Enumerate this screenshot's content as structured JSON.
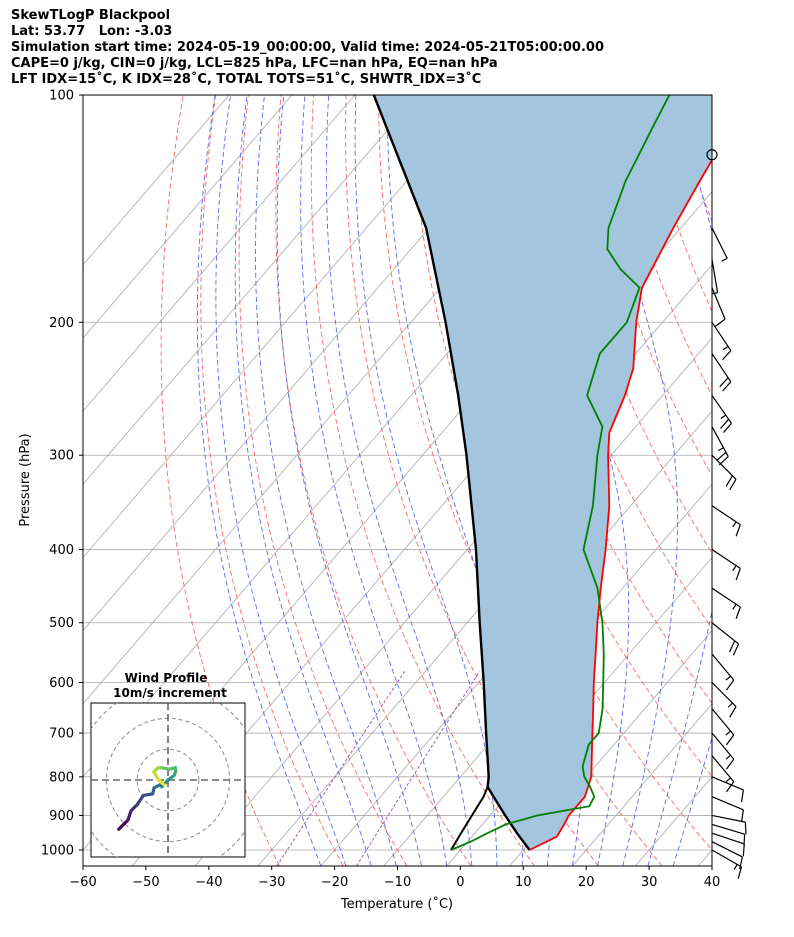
{
  "header": {
    "lines": [
      "SkewTLogP Blackpool",
      "Lat: 53.77   Lon: -3.03",
      "Simulation start time: 2024-05-19_00:00:00, Valid time: 2024-05-21T05:00:00.00",
      "CAPE=0 j/kg, CIN=0 j/kg, LCL=825 hPa, LFC=nan hPa, EQ=nan hPa",
      "LFT IDX=15˚C, K IDX=28˚C, TOTAL TOTS=51˚C, SHWTR_IDX=3˚C"
    ]
  },
  "chart_data": [
    {
      "type": "line",
      "subtype": "skew-t log-p",
      "xlabel": "Temperature (˚C)",
      "ylabel": "Pressure (hPa)",
      "xlim": [
        -60,
        40
      ],
      "ylim": [
        1050,
        100
      ],
      "y_scale": "log",
      "x_ticks": [
        -60,
        -50,
        -40,
        -30,
        -20,
        -10,
        0,
        10,
        20,
        30,
        40
      ],
      "y_ticks": [
        100,
        200,
        300,
        400,
        500,
        600,
        700,
        800,
        900,
        1000
      ],
      "x_tick_labels": [
        "−60",
        "−50",
        "−40",
        "−30",
        "−20",
        "−10",
        "0",
        "10",
        "20",
        "30",
        "40"
      ],
      "grid": true,
      "colors": {
        "temperature": "#ff0000",
        "dewpoint": "#008000",
        "parcel": "#000000",
        "fill": "#a3c6de",
        "dry_adiabats": "#ff6666",
        "moist_adiabats": "#5a6cf0",
        "mixing_ratio": "#9b59c6",
        "isotherms": "#aaaaaa"
      },
      "series": [
        {
          "key": "temperature",
          "p": [
            1000,
            960,
            925,
            900,
            850,
            800,
            750,
            700,
            650,
            600,
            550,
            500,
            450,
            400,
            350,
            300,
            280,
            250,
            230,
            200,
            180,
            150,
            130,
            110,
            100
          ],
          "t": [
            11,
            13.5,
            13,
            12.5,
            12.5,
            10.8,
            8,
            5,
            1.8,
            -1.7,
            -5.3,
            -9.3,
            -13.5,
            -18,
            -23.4,
            -30.5,
            -33.4,
            -36,
            -38.4,
            -44.2,
            -48,
            -51.2,
            -53.4,
            -55.8,
            -57
          ]
        },
        {
          "key": "dewpoint",
          "p": [
            1000,
            975,
            950,
            925,
            900,
            875,
            850,
            825,
            800,
            775,
            750,
            725,
            700,
            650,
            600,
            550,
            500,
            450,
            400,
            350,
            300,
            275,
            250,
            220,
            200,
            180,
            170,
            160,
            150,
            130,
            110,
            100
          ],
          "t": [
            -1.5,
            0.5,
            2,
            3.7,
            7.5,
            14.5,
            14,
            12,
            9.7,
            8,
            7,
            6,
            6,
            3.3,
            -0.2,
            -4,
            -8.5,
            -14,
            -21.5,
            -26,
            -32.2,
            -35.3,
            -42,
            -45.7,
            -45.7,
            -48.4,
            -54,
            -58.8,
            -61.5,
            -65.2,
            -68.3,
            -70
          ]
        },
        {
          "key": "parcel",
          "p": [
            1000,
            950,
            900,
            850,
            825,
            800,
            700,
            600,
            500,
            400,
            300,
            250,
            200,
            150,
            100
          ],
          "t": [
            11,
            6.7,
            2.4,
            -2,
            -4.3,
            -5.5,
            -11.9,
            -19.2,
            -28,
            -38.6,
            -53,
            -62.5,
            -74.5,
            -90.5,
            -117
          ]
        },
        {
          "key": "parcel-low",
          "p": [
            1000,
            950,
            900,
            850,
            825
          ],
          "t": [
            -1.5,
            -2.2,
            -2.9,
            -3.6,
            -4.3
          ]
        }
      ],
      "wind_barbs": {
        "p": [
          120,
          150,
          165,
          180,
          200,
          220,
          250,
          275,
          300,
          350,
          400,
          450,
          500,
          550,
          600,
          650,
          700,
          750,
          800,
          850,
          900,
          925,
          950,
          975,
          1000
        ],
        "u": [
          0,
          -2,
          -1,
          -5,
          -10,
          -12,
          -14,
          -12,
          -15,
          -15,
          -15,
          -15,
          -15,
          -10,
          -10,
          -10,
          -10,
          -10,
          -12,
          -12,
          -10,
          -10,
          -12,
          -12,
          -14
        ],
        "v": [
          0,
          4,
          6,
          12,
          15,
          18,
          20,
          22,
          15,
          10,
          10,
          10,
          12,
          12,
          10,
          12,
          12,
          12,
          5,
          5,
          2,
          3,
          4,
          6,
          8
        ]
      }
    },
    {
      "type": "line",
      "subtype": "hodograph",
      "title": "Wind Profile",
      "subtitle": "10m/s increment",
      "rings": [
        10,
        20,
        30
      ],
      "range": [
        -25,
        25
      ],
      "u": [
        -16,
        -13,
        -12,
        -10,
        -8,
        -5,
        -4.5,
        -2.5,
        -2,
        0,
        2,
        2.5,
        2.4,
        0.5,
        -2.2,
        -3.2,
        -4.6,
        -3.2,
        -1.2
      ],
      "v": [
        -16,
        -13,
        -10,
        -8,
        -5,
        -4.5,
        -2.5,
        -1.5,
        -2.2,
        0,
        1.5,
        2.8,
        4,
        3.5,
        4,
        4,
        2.7,
        0.2,
        -1.6
      ]
    }
  ]
}
